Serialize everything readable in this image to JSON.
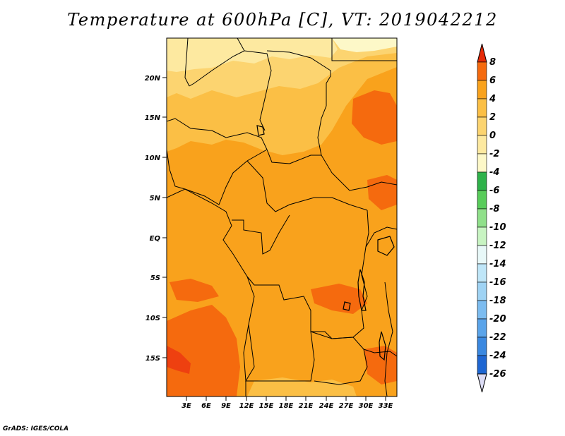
{
  "title": "Temperature at 600hPa [C], VT: 2019042212",
  "credit": "GrADS: IGES/COLA",
  "map": {
    "lat_labels": [
      "20N",
      "15N",
      "10N",
      "5N",
      "EQ",
      "5S",
      "10S",
      "15S"
    ],
    "lon_labels": [
      "3E",
      "6E",
      "9E",
      "12E",
      "15E",
      "18E",
      "21E",
      "24E",
      "27E",
      "30E",
      "33E"
    ],
    "field_colors": {
      "cold": "#fde9a0",
      "cool": "#fcd470",
      "mild": "#fbbf45",
      "warm": "#f9a21c",
      "hot": "#f56a0e",
      "hotter": "#ee4010"
    }
  },
  "colorbar": {
    "labels": [
      "8",
      "6",
      "4",
      "2",
      "0",
      "-2",
      "-4",
      "-6",
      "-8",
      "-10",
      "-12",
      "-14",
      "-16",
      "-18",
      "-20",
      "-22",
      "-24",
      "-26"
    ],
    "colors": [
      "#e62a08",
      "#f56a0e",
      "#f9a21c",
      "#fbbf45",
      "#fcd470",
      "#fde9a0",
      "#fdf8c8",
      "#2fb24a",
      "#58cc5a",
      "#90e08a",
      "#c8f4c2",
      "#e8f8f8",
      "#bfe6f8",
      "#9fd3f4",
      "#7cbcf0",
      "#5aa4ea",
      "#3a88e0",
      "#1e66d2",
      "#0c46b4",
      "#052a8a",
      "#000c5a",
      "#dcdcf5"
    ]
  }
}
